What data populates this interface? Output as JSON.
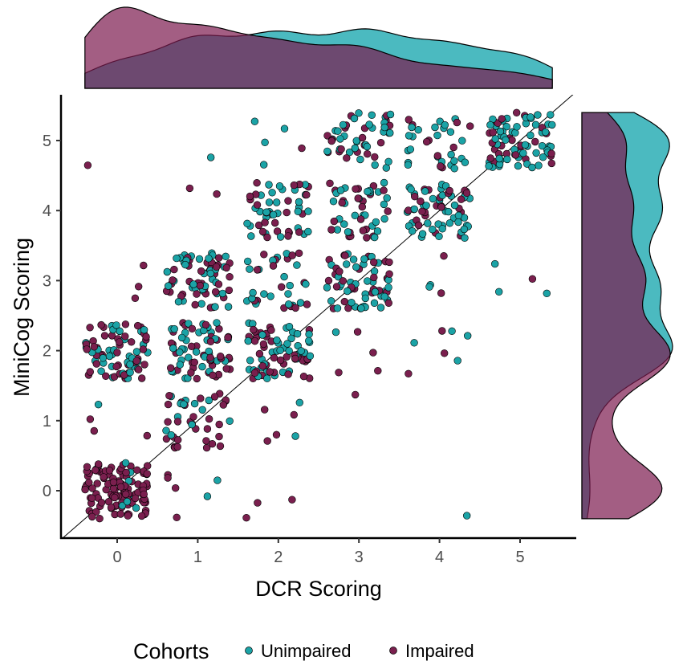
{
  "chart_data": {
    "type": "scatter",
    "subtype": "jittered scatter with marginal density plots",
    "xlabel": "DCR Scoring",
    "ylabel": "MiniCog Scoring",
    "xlim": [
      -0.7,
      5.7
    ],
    "ylim": [
      -0.68,
      5.65
    ],
    "xticks": [
      "0",
      "1",
      "2",
      "3",
      "4",
      "5"
    ],
    "yticks": [
      "0",
      "1",
      "2",
      "3",
      "4",
      "5"
    ],
    "grid": false,
    "reference_line": "y = x",
    "jitter": 0.4,
    "legend": {
      "title": "Cohorts",
      "placement": "bottom"
    },
    "series": [
      {
        "name": "Unimpaired",
        "color": "#1BA3A6",
        "density_color": "#4BBAC0",
        "cells": [
          [
            0,
            0,
            8
          ],
          [
            0,
            1,
            1
          ],
          [
            0,
            2,
            35
          ],
          [
            1,
            0,
            2
          ],
          [
            1,
            1,
            12
          ],
          [
            1,
            2,
            35
          ],
          [
            1,
            3,
            35
          ],
          [
            1,
            5,
            1
          ],
          [
            2,
            1,
            2
          ],
          [
            2,
            2,
            40
          ],
          [
            2,
            3,
            20
          ],
          [
            2,
            4,
            30
          ],
          [
            2,
            5,
            4
          ],
          [
            3,
            2,
            1
          ],
          [
            3,
            3,
            40
          ],
          [
            3,
            4,
            25
          ],
          [
            3,
            5,
            30
          ],
          [
            4,
            0,
            1
          ],
          [
            4,
            2,
            4
          ],
          [
            4,
            3,
            2
          ],
          [
            4,
            4,
            45
          ],
          [
            4,
            5,
            25
          ],
          [
            5,
            3,
            3
          ],
          [
            5,
            5,
            55
          ]
        ]
      },
      {
        "name": "Impaired",
        "color": "#7A1F4E",
        "density_color": "#7C1A4E",
        "cells": [
          [
            0,
            0,
            110
          ],
          [
            0,
            1,
            3
          ],
          [
            0,
            2,
            45
          ],
          [
            0,
            3,
            3
          ],
          [
            0,
            5,
            1
          ],
          [
            1,
            0,
            4
          ],
          [
            1,
            1,
            30
          ],
          [
            1,
            2,
            40
          ],
          [
            1,
            3,
            40
          ],
          [
            1,
            4,
            2
          ],
          [
            2,
            0,
            3
          ],
          [
            2,
            1,
            4
          ],
          [
            2,
            2,
            40
          ],
          [
            2,
            3,
            15
          ],
          [
            2,
            4,
            25
          ],
          [
            2,
            5,
            1
          ],
          [
            3,
            1,
            1
          ],
          [
            3,
            2,
            4
          ],
          [
            3,
            3,
            30
          ],
          [
            3,
            4,
            25
          ],
          [
            3,
            5,
            20
          ],
          [
            4,
            2,
            3
          ],
          [
            4,
            3,
            2
          ],
          [
            4,
            4,
            25
          ],
          [
            4,
            5,
            10
          ],
          [
            5,
            3,
            1
          ],
          [
            5,
            5,
            30
          ]
        ]
      }
    ]
  }
}
